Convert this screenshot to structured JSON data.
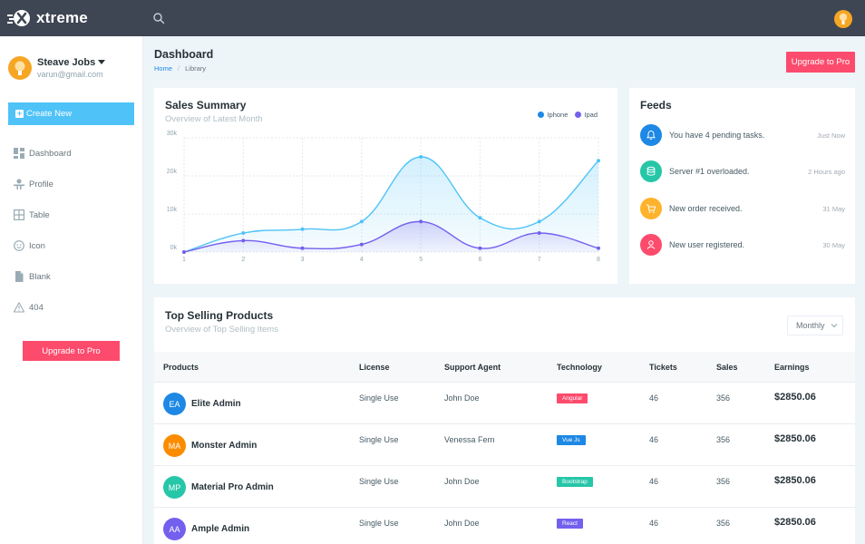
{
  "app": {
    "logo_text": "xtreme"
  },
  "user": {
    "name": "Steave Jobs",
    "email": "varun@gmail.com"
  },
  "sidebar": {
    "create_label": "Create New",
    "items": [
      {
        "label": "Dashboard",
        "icon": "dashboard-icon"
      },
      {
        "label": "Profile",
        "icon": "profile-icon"
      },
      {
        "label": "Table",
        "icon": "table-icon"
      },
      {
        "label": "Icon",
        "icon": "smiley-icon"
      },
      {
        "label": "Blank",
        "icon": "file-icon"
      },
      {
        "label": "404",
        "icon": "warning-icon"
      }
    ],
    "upgrade_label": "Upgrade to Pro"
  },
  "page": {
    "title": "Dashboard",
    "breadcrumb": {
      "home": "Home",
      "current": "Library"
    },
    "upgrade_label": "Upgrade to Pro"
  },
  "sales": {
    "title": "Sales Summary",
    "subtitle": "Overview of Latest Month"
  },
  "chart_data": {
    "type": "area",
    "x": [
      1,
      2,
      3,
      4,
      5,
      6,
      7,
      8
    ],
    "series": [
      {
        "name": "Iphone",
        "color": "#4fc3f7",
        "values": [
          0,
          5000,
          6000,
          8000,
          25000,
          9000,
          8000,
          24000
        ]
      },
      {
        "name": "Ipad",
        "color": "#7460ee",
        "values": [
          0,
          3000,
          1000,
          2000,
          8000,
          1000,
          5000,
          1000
        ]
      }
    ],
    "y_ticks": [
      "0k",
      "10k",
      "20k",
      "30k"
    ],
    "x_ticks": [
      "1",
      "2",
      "3",
      "4",
      "5",
      "6",
      "7",
      "8"
    ],
    "ylim": [
      0,
      30000
    ],
    "grid": true,
    "legend": "top-right",
    "title": "",
    "xlabel": "",
    "ylabel": ""
  },
  "feeds": {
    "title": "Feeds",
    "items": [
      {
        "text": "You have 4 pending tasks.",
        "time": "Just Now",
        "color": "#1e88e5",
        "icon": "bell-icon"
      },
      {
        "text": "Server #1 overloaded.",
        "time": "2 Hours ago",
        "color": "#26c6da",
        "icon": "database-icon"
      },
      {
        "text": "New order received.",
        "time": "31 May",
        "color": "#ffb22b",
        "icon": "cart-icon"
      },
      {
        "text": "New user registered.",
        "time": "30 May",
        "color": "#fc4b6c",
        "icon": "user-icon"
      }
    ]
  },
  "products": {
    "title": "Top Selling Products",
    "subtitle": "Overview of Top Selling Items",
    "filter": "Monthly",
    "headers": [
      "Products",
      "License",
      "Support Agent",
      "Technology",
      "Tickets",
      "Sales",
      "Earnings"
    ],
    "rows": [
      {
        "initials": "EA",
        "name": "Elite Admin",
        "license": "Single Use",
        "agent": "John Doe",
        "tech": "Angular",
        "tech_color": "#fc4b6c",
        "tickets": "46",
        "sales": "356",
        "earnings": "$2850.06",
        "avatar_color": "#1e88e5"
      },
      {
        "initials": "MA",
        "name": "Monster Admin",
        "license": "Single Use",
        "agent": "Venessa Fern",
        "tech": "Vue Js",
        "tech_color": "#1e88e5",
        "tickets": "46",
        "sales": "356",
        "earnings": "$2850.06",
        "avatar_color": "#fb8c00"
      },
      {
        "initials": "MP",
        "name": "Material Pro Admin",
        "license": "Single Use",
        "agent": "John Doe",
        "tech": "Bootstrap",
        "tech_color": "#26c6a8",
        "tickets": "46",
        "sales": "356",
        "earnings": "$2850.06",
        "avatar_color": "#26c6a8"
      },
      {
        "initials": "AA",
        "name": "Ample Admin",
        "license": "Single Use",
        "agent": "John Doe",
        "tech": "React",
        "tech_color": "#7460ee",
        "tickets": "46",
        "sales": "356",
        "earnings": "$2850.06",
        "avatar_color": "#7460ee"
      }
    ]
  }
}
